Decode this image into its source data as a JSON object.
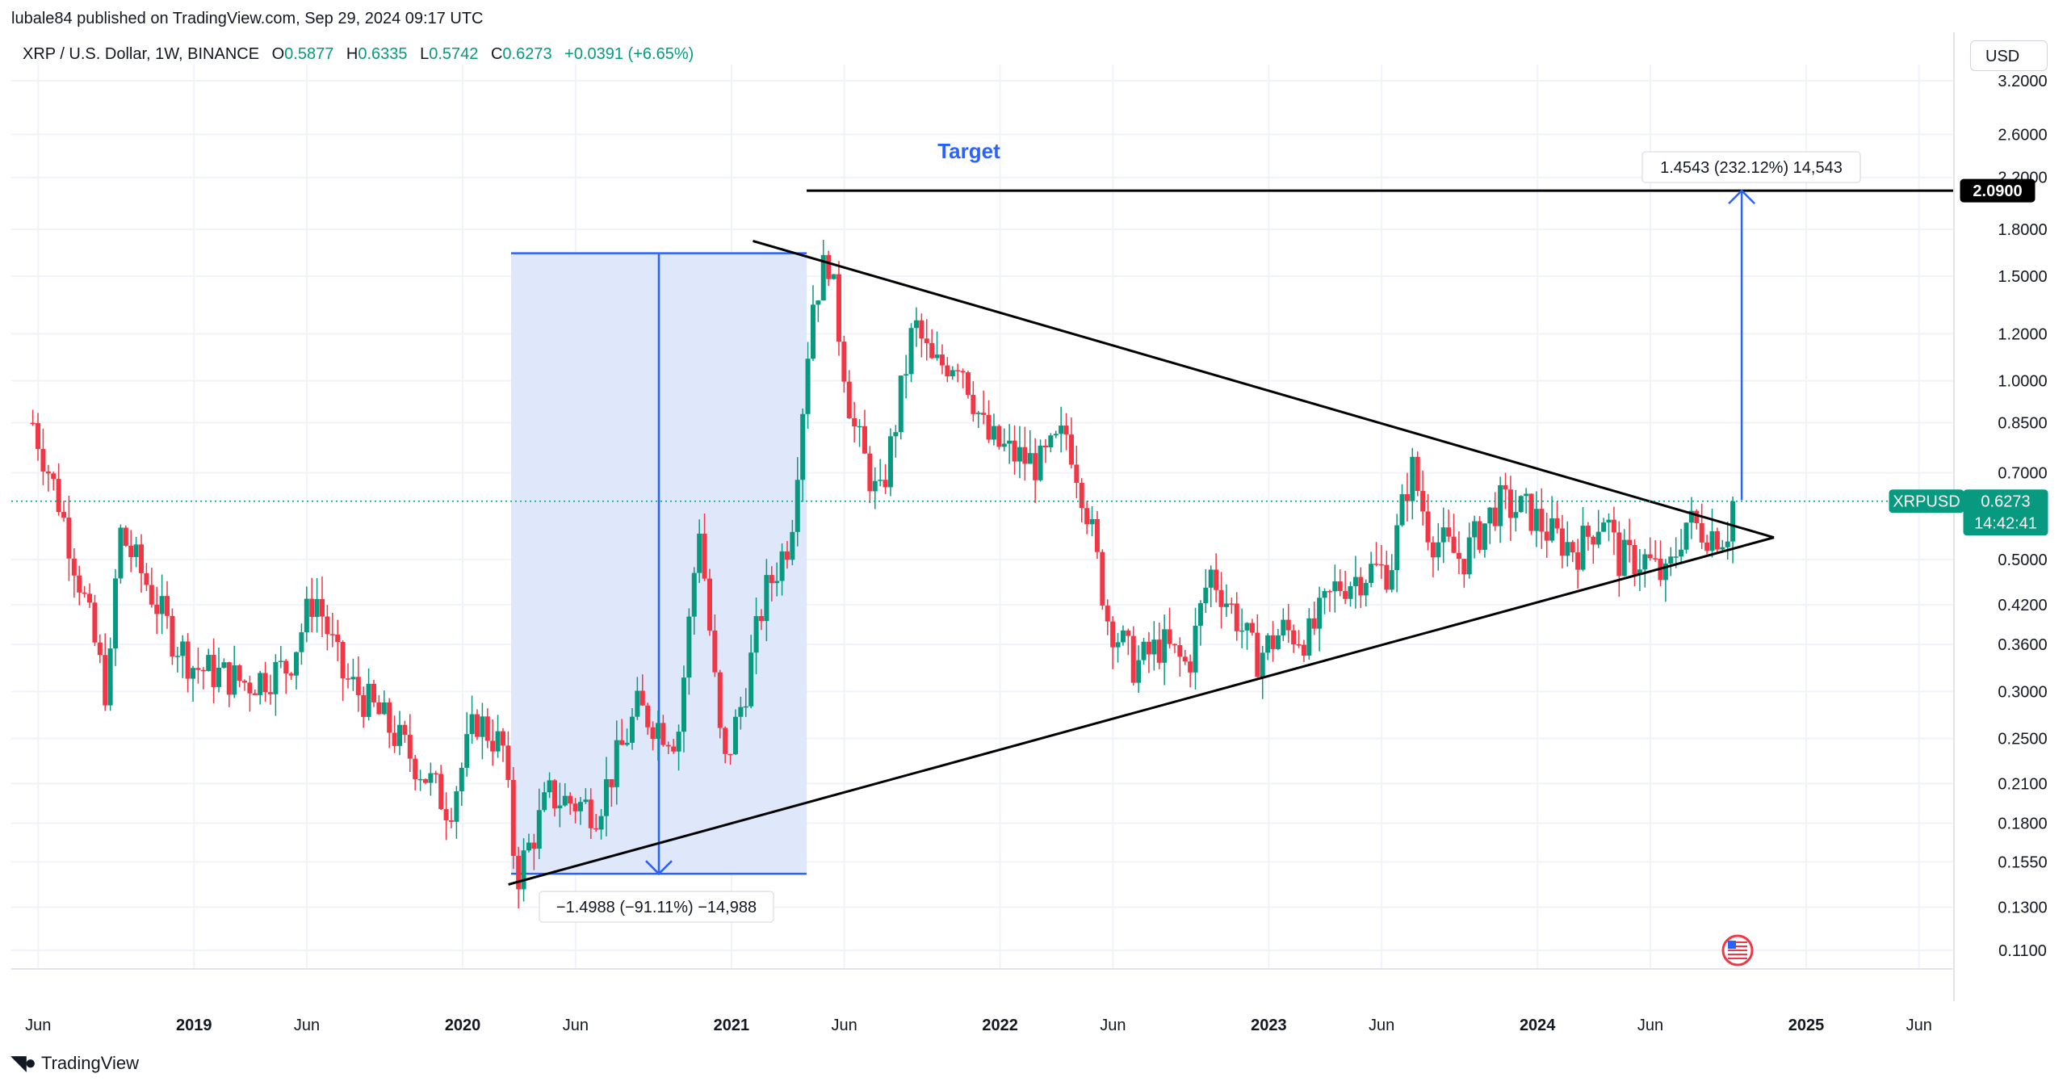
{
  "header": {
    "published": "lubale84 published on TradingView.com, Sep 29, 2024 09:17 UTC",
    "symbol": "XRP / U.S. Dollar, 1W, BINANCE",
    "o_label": "O",
    "o_value": "0.5877",
    "h_label": "H",
    "h_value": "0.6335",
    "l_label": "L",
    "l_value": "0.5742",
    "c_label": "C",
    "c_value": "0.6273",
    "change": "+0.0391 (+6.65%)",
    "currency": "USD"
  },
  "footer": {
    "brand": "TradingView"
  },
  "colors": {
    "up": "#089981",
    "down": "#f23645",
    "range_fill": "#dbe6fb",
    "range_line": "#2962ff",
    "trend": "#000000"
  },
  "chart_data": {
    "type": "candlestick",
    "scale": "log",
    "y_ticks": [
      "3.2000",
      "2.6000",
      "2.2000",
      "1.8000",
      "1.5000",
      "1.2000",
      "1.0000",
      "0.8500",
      "0.7000",
      "0.5000",
      "0.4200",
      "0.3600",
      "0.3000",
      "0.2500",
      "0.2100",
      "0.1800",
      "0.1550",
      "0.1300",
      "0.1100"
    ],
    "x_ticks": [
      {
        "label": "Jun",
        "t": 2018.42,
        "bold": false
      },
      {
        "label": "2019",
        "t": 2019.0,
        "bold": true
      },
      {
        "label": "Jun",
        "t": 2019.42,
        "bold": false
      },
      {
        "label": "2020",
        "t": 2020.0,
        "bold": true
      },
      {
        "label": "Jun",
        "t": 2020.42,
        "bold": false
      },
      {
        "label": "2021",
        "t": 2021.0,
        "bold": true
      },
      {
        "label": "Jun",
        "t": 2021.42,
        "bold": false
      },
      {
        "label": "2022",
        "t": 2022.0,
        "bold": true
      },
      {
        "label": "Jun",
        "t": 2022.42,
        "bold": false
      },
      {
        "label": "2023",
        "t": 2023.0,
        "bold": true
      },
      {
        "label": "Jun",
        "t": 2023.42,
        "bold": false
      },
      {
        "label": "2024",
        "t": 2024.0,
        "bold": true
      },
      {
        "label": "Jun",
        "t": 2024.42,
        "bold": false
      },
      {
        "label": "2025",
        "t": 2025.0,
        "bold": true
      },
      {
        "label": "Jun",
        "t": 2025.42,
        "bold": false
      }
    ],
    "price_path": [
      [
        2018.4,
        0.85
      ],
      [
        2018.5,
        0.62
      ],
      [
        2018.58,
        0.45
      ],
      [
        2018.68,
        0.29
      ],
      [
        2018.72,
        0.56
      ],
      [
        2018.82,
        0.46
      ],
      [
        2018.92,
        0.37
      ],
      [
        2019.0,
        0.33
      ],
      [
        2019.2,
        0.31
      ],
      [
        2019.35,
        0.33
      ],
      [
        2019.45,
        0.44
      ],
      [
        2019.55,
        0.32
      ],
      [
        2019.7,
        0.27
      ],
      [
        2019.85,
        0.22
      ],
      [
        2019.95,
        0.19
      ],
      [
        2020.05,
        0.27
      ],
      [
        2020.15,
        0.24
      ],
      [
        2020.2,
        0.145
      ],
      [
        2020.32,
        0.2
      ],
      [
        2020.5,
        0.19
      ],
      [
        2020.65,
        0.28
      ],
      [
        2020.8,
        0.25
      ],
      [
        2020.88,
        0.58
      ],
      [
        2020.97,
        0.22
      ],
      [
        2021.05,
        0.3
      ],
      [
        2021.12,
        0.43
      ],
      [
        2021.22,
        0.55
      ],
      [
        2021.3,
        1.35
      ],
      [
        2021.36,
        1.62
      ],
      [
        2021.45,
        0.85
      ],
      [
        2021.55,
        0.62
      ],
      [
        2021.6,
        0.8
      ],
      [
        2021.68,
        1.25
      ],
      [
        2021.75,
        1.05
      ],
      [
        2021.85,
        1.1
      ],
      [
        2021.95,
        0.8
      ],
      [
        2022.05,
        0.75
      ],
      [
        2022.15,
        0.72
      ],
      [
        2022.25,
        0.82
      ],
      [
        2022.32,
        0.62
      ],
      [
        2022.4,
        0.4
      ],
      [
        2022.5,
        0.33
      ],
      [
        2022.6,
        0.36
      ],
      [
        2022.7,
        0.33
      ],
      [
        2022.78,
        0.48
      ],
      [
        2022.88,
        0.4
      ],
      [
        2022.95,
        0.34
      ],
      [
        2023.05,
        0.38
      ],
      [
        2023.15,
        0.37
      ],
      [
        2023.25,
        0.45
      ],
      [
        2023.38,
        0.48
      ],
      [
        2023.45,
        0.48
      ],
      [
        2023.53,
        0.72
      ],
      [
        2023.6,
        0.55
      ],
      [
        2023.72,
        0.5
      ],
      [
        2023.85,
        0.62
      ],
      [
        2023.97,
        0.6
      ],
      [
        2024.05,
        0.55
      ],
      [
        2024.15,
        0.52
      ],
      [
        2024.25,
        0.6
      ],
      [
        2024.3,
        0.5
      ],
      [
        2024.4,
        0.5
      ],
      [
        2024.48,
        0.46
      ],
      [
        2024.55,
        0.58
      ],
      [
        2024.62,
        0.56
      ],
      [
        2024.7,
        0.55
      ],
      [
        2024.74,
        0.6273
      ]
    ],
    "last_price": "0.6273",
    "last_symbol": "XRPUSD",
    "countdown": "14:42:41",
    "target_price": "2.0900",
    "target_title": "Target",
    "measure_down": "−1.4988 (−91.11%) −14,988",
    "measure_up": "1.4543 (232.12%) 14,543",
    "triangle": {
      "upper": [
        [
          2021.08,
          1.72
        ],
        [
          2024.88,
          0.545
        ]
      ],
      "lower": [
        [
          2020.17,
          0.142
        ],
        [
          2024.88,
          0.545
        ]
      ]
    },
    "range_box": {
      "t0": 2020.18,
      "t1": 2021.28,
      "p_top": 1.64,
      "p_bottom": 0.148
    },
    "target_line": {
      "t0": 2021.28,
      "t1": 2025.7,
      "price": 2.09
    },
    "up_arrow": {
      "t": 2024.76,
      "from": 0.63,
      "to": 2.09
    }
  }
}
